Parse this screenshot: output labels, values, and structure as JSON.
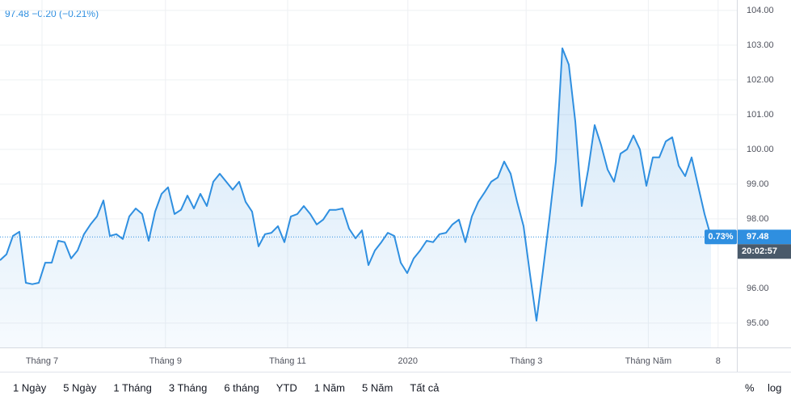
{
  "header": {
    "quote": "97.48 −0.20 (−0.21%)"
  },
  "chart_data": {
    "type": "line",
    "series": [
      {
        "color": "#2f8fe0",
        "values": [
          96.81,
          96.98,
          97.51,
          97.63,
          96.16,
          96.12,
          96.16,
          96.74,
          96.74,
          97.37,
          97.33,
          96.86,
          97.09,
          97.56,
          97.84,
          98.07,
          98.53,
          97.51,
          97.56,
          97.42,
          98.07,
          98.3,
          98.14,
          97.37,
          98.21,
          98.72,
          98.91,
          98.14,
          98.26,
          98.67,
          98.3,
          98.72,
          98.37,
          99.07,
          99.3,
          99.07,
          98.84,
          99.07,
          98.49,
          98.21,
          97.21,
          97.56,
          97.6,
          97.79,
          97.33,
          98.07,
          98.14,
          98.37,
          98.14,
          97.84,
          97.98,
          98.26,
          98.26,
          98.3,
          97.72,
          97.44,
          97.67,
          96.67,
          97.09,
          97.33,
          97.6,
          97.51,
          96.74,
          96.44,
          96.86,
          97.09,
          97.37,
          97.33,
          97.56,
          97.6,
          97.84,
          97.98,
          97.33,
          98.07,
          98.49,
          98.77,
          99.07,
          99.19,
          99.65,
          99.3,
          98.49,
          97.79,
          96.4,
          95.07,
          96.51,
          98.02,
          99.65,
          102.91,
          102.44,
          100.81,
          98.37,
          99.42,
          100.7,
          100.12,
          99.42,
          99.07,
          99.88,
          100.0,
          100.4,
          100.0,
          98.95,
          99.77,
          99.77,
          100.23,
          100.35,
          99.53,
          99.23,
          99.77,
          98.95,
          98.14,
          97.48
        ]
      }
    ],
    "xlim": [
      0,
      114
    ],
    "xticks": [
      {
        "value": 6.5,
        "label": "Tháng 7"
      },
      {
        "value": 25.6,
        "label": "Tháng 9"
      },
      {
        "value": 44.5,
        "label": "Tháng 11"
      },
      {
        "value": 63.1,
        "label": "2020"
      },
      {
        "value": 81.4,
        "label": "Tháng 3"
      },
      {
        "value": 100.3,
        "label": "Tháng Năm"
      },
      {
        "value": 111.1,
        "label": "8"
      }
    ],
    "ylim": [
      94.3,
      104.3
    ],
    "yticks": [
      {
        "value": 95,
        "label": "95.00"
      },
      {
        "value": 96,
        "label": "96.00"
      },
      {
        "value": 98,
        "label": "98.00"
      },
      {
        "value": 99,
        "label": "99.00"
      },
      {
        "value": 100,
        "label": "100.00"
      },
      {
        "value": 101,
        "label": "101.00"
      },
      {
        "value": 102,
        "label": "102.00"
      },
      {
        "value": 103,
        "label": "103.00"
      },
      {
        "value": 104,
        "label": "104.00"
      }
    ],
    "grid": true,
    "price_line": {
      "value": 97.48,
      "label": "97.48",
      "change_label": "0.73%",
      "time_label": "20:02:57"
    }
  },
  "toolbar": {
    "ranges": [
      "1 Ngày",
      "5 Ngày",
      "1 Tháng",
      "3 Tháng",
      "6 tháng",
      "YTD",
      "1 Năm",
      "5 Năm",
      "Tất cả"
    ],
    "scale_options": [
      "%",
      "log"
    ]
  }
}
